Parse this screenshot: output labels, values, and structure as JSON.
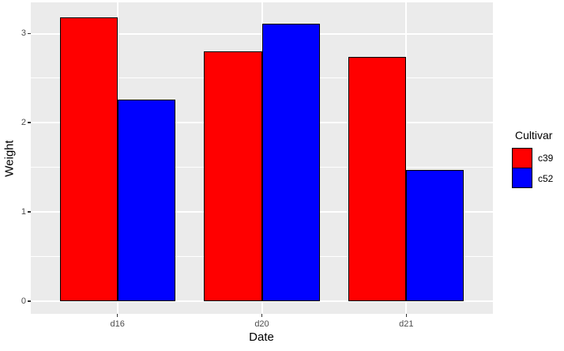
{
  "chart_data": {
    "type": "bar",
    "title": "",
    "xlabel": "Date",
    "ylabel": "Weight",
    "categories": [
      "d16",
      "d20",
      "d21"
    ],
    "series": [
      {
        "name": "c39",
        "color": "#ff0000",
        "values": [
          3.18,
          2.8,
          2.74
        ]
      },
      {
        "name": "c52",
        "color": "#0000ff",
        "values": [
          2.26,
          3.11,
          1.47
        ]
      }
    ],
    "legend_title": "Cultivar",
    "legend_position": "right",
    "yticks": [
      "0",
      "1",
      "2",
      "3"
    ],
    "ytick_values": [
      0,
      1,
      2,
      3
    ],
    "yminor_values": [
      0.5,
      1.5,
      2.5
    ],
    "ylim": [
      -0.14,
      3.35
    ],
    "grid": "on",
    "style": {
      "panel_bg": "#ebebeb",
      "grid_color": "#ffffff",
      "bar_border_color": "#000000",
      "tick_mark_color": "#333333",
      "axis_text_color": "#4d4d4d",
      "axis_title_color": "#000000",
      "legend_text_color": "#000000"
    }
  }
}
